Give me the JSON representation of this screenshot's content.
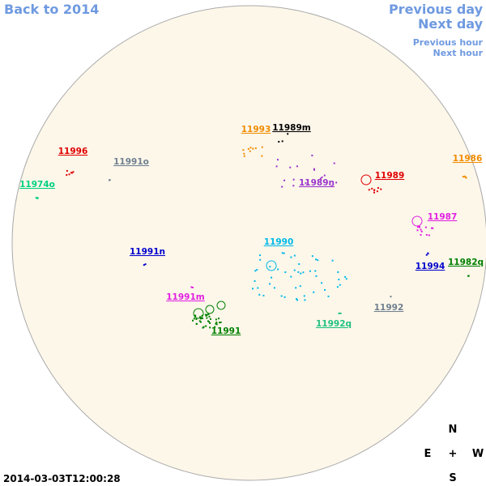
{
  "nav": {
    "back": "Back to 2014",
    "previous_day": "Previous day",
    "next_day": "Next day",
    "previous_hour": "Previous hour",
    "next_hour": "Next hour"
  },
  "regions": [
    {
      "label": "11996",
      "color": "#e00000"
    },
    {
      "label": "11991o",
      "color": "#708090"
    },
    {
      "label": "11974o",
      "color": "#00d080"
    },
    {
      "label": "11993",
      "color": "#f08c00"
    },
    {
      "label": "11989m",
      "color": "#000000"
    },
    {
      "label": "11986",
      "color": "#f08c00"
    },
    {
      "label": "11989",
      "color": "#e00000"
    },
    {
      "label": "11989n",
      "color": "#9933cc"
    },
    {
      "label": "11987",
      "color": "#e020e0"
    },
    {
      "label": "11990",
      "color": "#00b8e8"
    },
    {
      "label": "11991n",
      "color": "#0000cc"
    },
    {
      "label": "11994",
      "color": "#0000cc"
    },
    {
      "label": "11982q",
      "color": "#008000"
    },
    {
      "label": "11991m",
      "color": "#e020e0"
    },
    {
      "label": "11992",
      "color": "#708090"
    },
    {
      "label": "11992q",
      "color": "#20c080"
    },
    {
      "label": "11991",
      "color": "#008000"
    }
  ],
  "compass": {
    "north": "N",
    "east": "E",
    "center": "+",
    "west": "W",
    "south": "S"
  },
  "timestamp": "2014-03-03T12:00:28"
}
